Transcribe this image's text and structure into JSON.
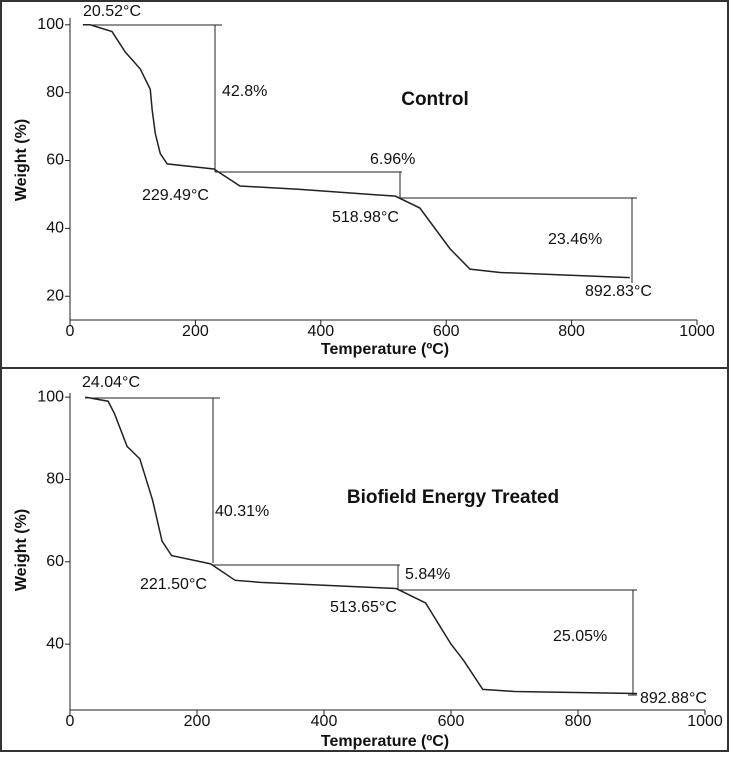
{
  "chart_data": [
    {
      "type": "line",
      "title": "Control",
      "xlabel": "Temperature (ºC)",
      "ylabel": "Weight (%)",
      "xlim": [
        0,
        1000
      ],
      "xticks": [
        0,
        200,
        400,
        600,
        800,
        1000
      ],
      "ylim": [
        13,
        102
      ],
      "yticks": [
        20,
        40,
        60,
        80,
        100
      ],
      "series": [
        {
          "color": "#222222",
          "x": [
            20.52,
            32,
            67,
            88,
            112,
            128,
            131,
            136,
            144,
            155,
            229.49,
            271,
            367,
            518.98,
            558,
            582,
            606,
            638,
            686,
            892.83
          ],
          "values": [
            100,
            100,
            98,
            92,
            87,
            81,
            75,
            68,
            62,
            59,
            57.5,
            52.5,
            51.5,
            49.5,
            46,
            40,
            34,
            28,
            27,
            25.5
          ]
        }
      ],
      "annotations": [
        "20.52°C",
        "42.8%",
        "6.96%",
        "229.49°C",
        "518.98°C",
        "23.46%",
        "892.83°C"
      ]
    },
    {
      "type": "line",
      "title": "Biofield Energy Treated",
      "xlabel": "Temperature (ºC)",
      "ylabel": "Weight (%)",
      "xlim": [
        0,
        1000
      ],
      "xticks": [
        0,
        200,
        400,
        600,
        800,
        1000
      ],
      "ylim": [
        24,
        101
      ],
      "yticks": [
        40,
        60,
        80,
        100
      ],
      "series": [
        {
          "color": "#222222",
          "x": [
            24.04,
            60,
            70,
            90,
            110,
            130,
            145,
            160,
            221.5,
            260,
            300,
            400,
            513.65,
            560,
            580,
            600,
            620,
            650,
            700,
            892.88
          ],
          "values": [
            100,
            99,
            96,
            88,
            85,
            75,
            65,
            61.5,
            59.5,
            55.5,
            55,
            54.3,
            53.5,
            50,
            45,
            40,
            36,
            29,
            28.5,
            28
          ]
        }
      ],
      "annotations": [
        "24.04°C",
        "40.31%",
        "5.84%",
        "221.50°C",
        "513.65°C",
        "25.05%",
        "892.88°C"
      ]
    }
  ]
}
